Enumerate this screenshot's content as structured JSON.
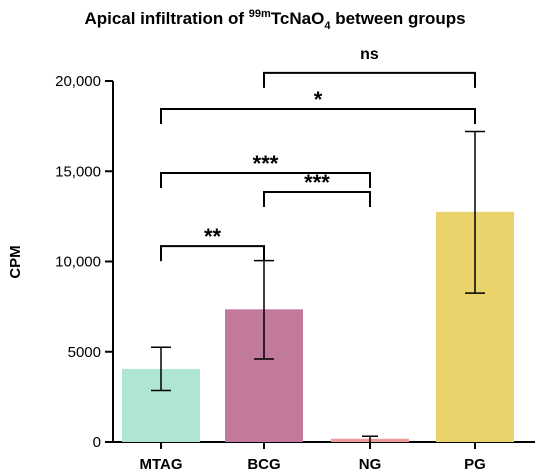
{
  "chart_data": {
    "type": "bar",
    "title": {
      "prefix": "Apical infiltration of ",
      "superscript": "99m",
      "main": "TcNaO",
      "subscript": "4",
      "suffix": " between groups"
    },
    "xlabel": "",
    "ylabel": "CPM",
    "ylim": [
      0,
      20000
    ],
    "yticks": [
      0,
      5000,
      10000,
      15000,
      20000
    ],
    "ytick_labels": [
      "0",
      "5000",
      "10,000",
      "15,000",
      "20,000"
    ],
    "categories": [
      "MTAG",
      "BCG",
      "NG",
      "PG"
    ],
    "values": [
      4050,
      7350,
      180,
      12750
    ],
    "error_low": [
      2850,
      4600,
      0,
      8250
    ],
    "error_high": [
      5250,
      10050,
      320,
      17200
    ],
    "colors": [
      "#aee6d1",
      "#c27a9c",
      "#ee9c98",
      "#ead36a"
    ],
    "comparisons": [
      {
        "from": "MTAG",
        "to": "BCG",
        "label": "**",
        "y": 10850
      },
      {
        "from": "BCG",
        "to": "NG",
        "label": "***",
        "y": 13850
      },
      {
        "from": "MTAG",
        "to": "NG",
        "label": "***",
        "y": 14900
      },
      {
        "from": "MTAG",
        "to": "PG",
        "label": "*",
        "y": 18450
      },
      {
        "from": "BCG",
        "to": "PG",
        "label": "ns",
        "y": 20450
      }
    ],
    "grid": false,
    "legend": "none"
  }
}
